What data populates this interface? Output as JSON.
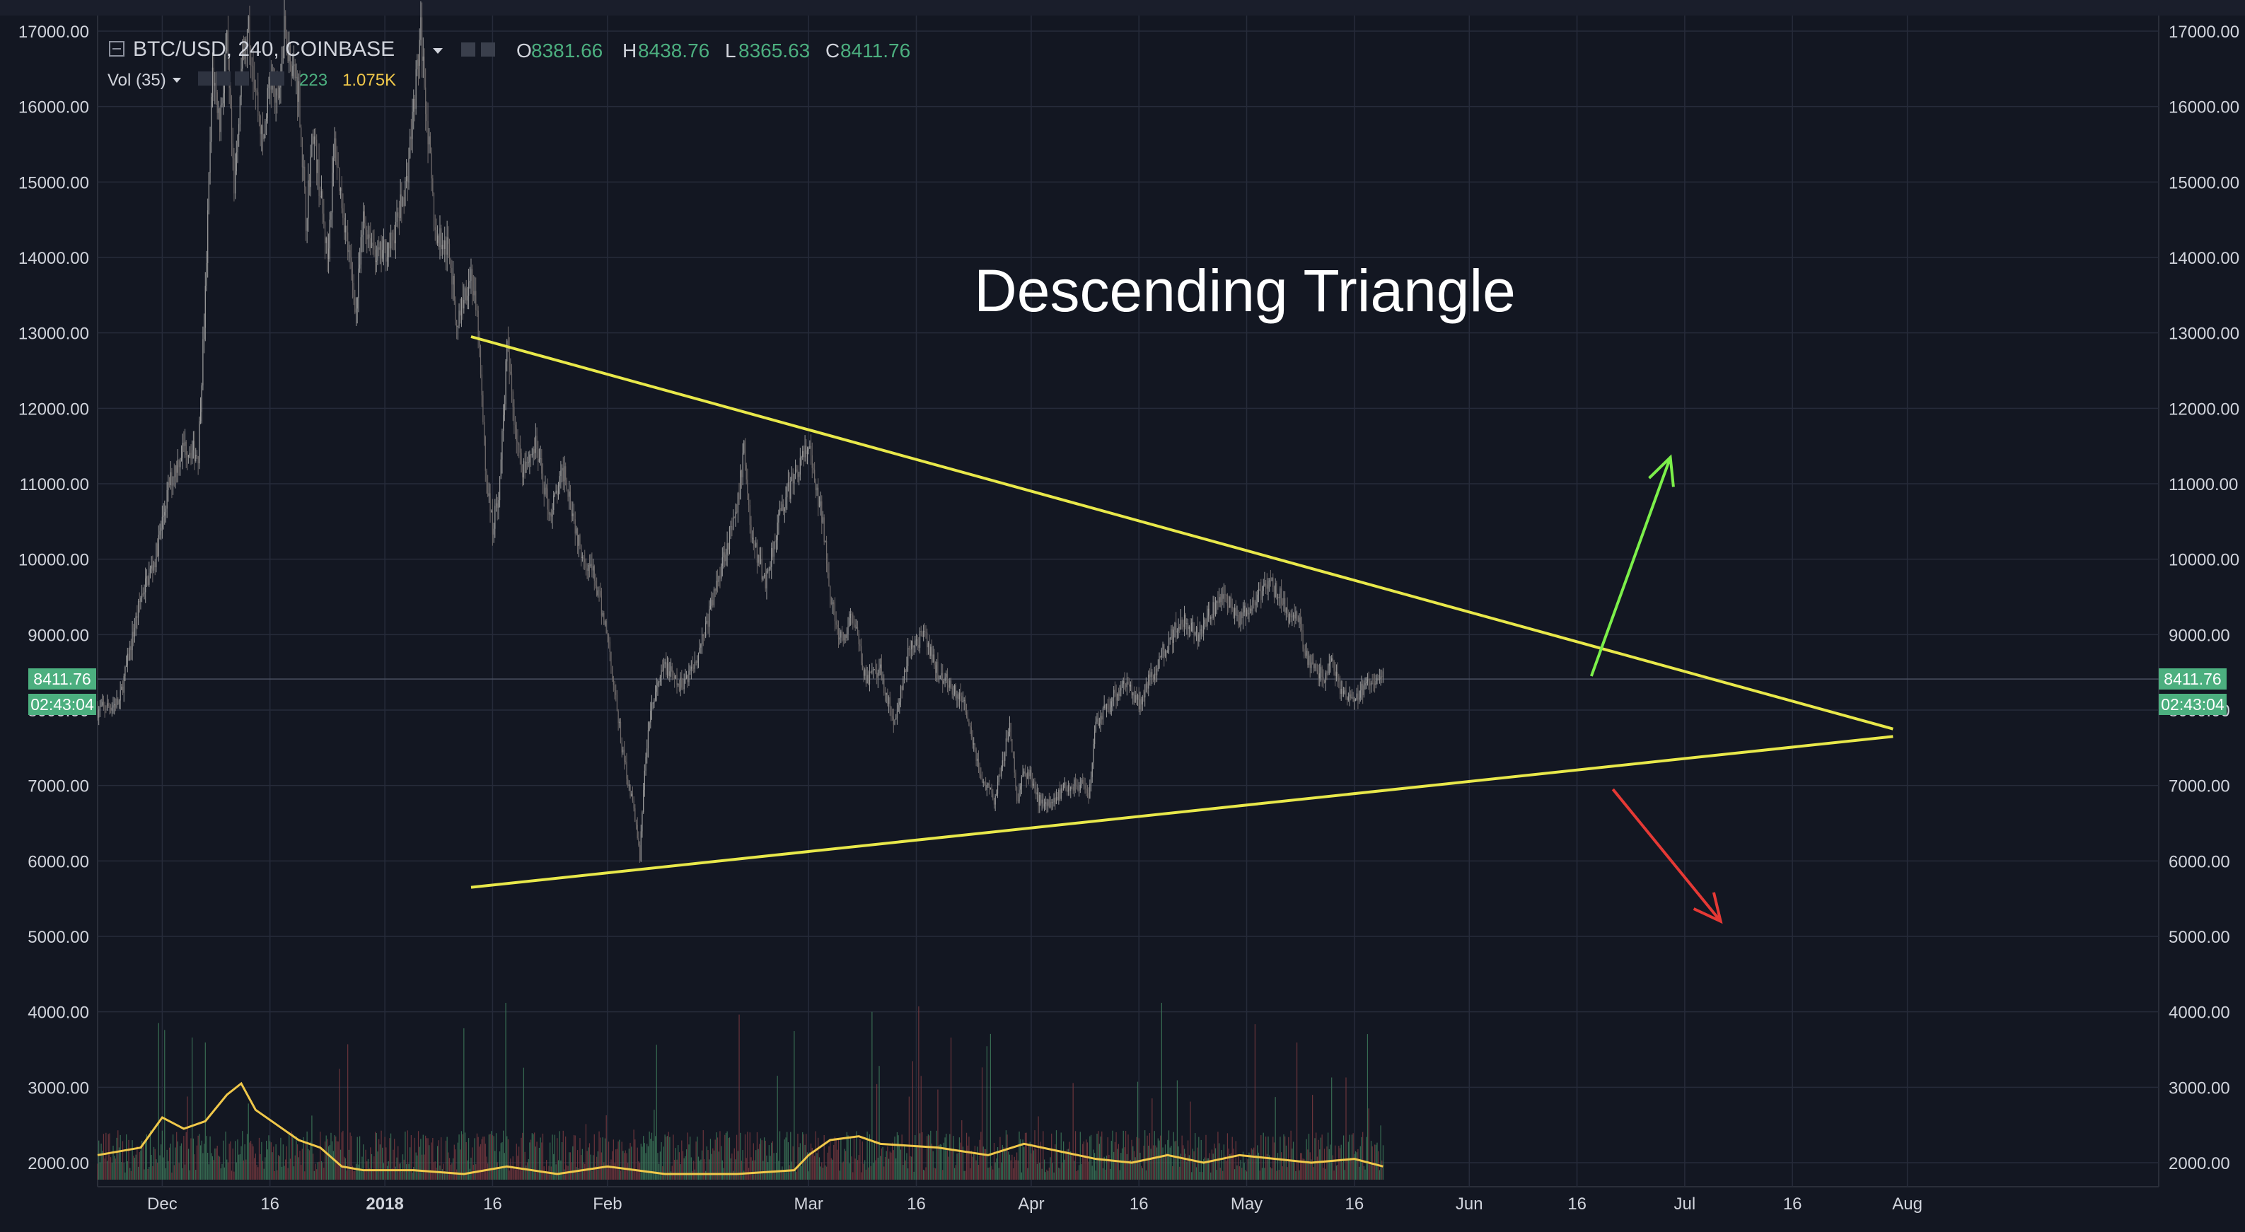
{
  "header": {
    "symbol": "BTC/USD, 240, COINBASE",
    "ohlc": [
      {
        "k": "O",
        "v": "8381.66"
      },
      {
        "k": "H",
        "v": "8438.76"
      },
      {
        "k": "L",
        "v": "8365.63"
      },
      {
        "k": "C",
        "v": "8411.76"
      }
    ],
    "vol_label": "Vol (35)",
    "vol_value": "223",
    "vol_ma_value": "1.075K"
  },
  "annotation": {
    "title": "Descending Triangle"
  },
  "price_tag": {
    "price": "8411.76",
    "countdown": "02:43:04"
  },
  "colors": {
    "background": "#131722",
    "grid": "#262b3a",
    "axis_text": "#d1d4dc",
    "candle": "#8a8a8a",
    "trendline": "#e8e84a",
    "arrow_up": "#7cf04a",
    "arrow_down": "#e53935",
    "price_tag": "#4caf7f",
    "vol_up": "#3e7a5a",
    "vol_down": "#7a3a40",
    "vol_ma": "#f0c84a"
  },
  "chart_data": {
    "type": "candlestick",
    "price_ticks": [
      2000,
      3000,
      4000,
      5000,
      6000,
      7000,
      8000,
      9000,
      10000,
      11000,
      12000,
      13000,
      14000,
      15000,
      16000,
      17000
    ],
    "price_tick_labels": [
      "2000.00",
      "3000.00",
      "4000.00",
      "5000.00",
      "6000.00",
      "7000.00",
      "8000.00",
      "9000.00",
      "10000.00",
      "11000.00",
      "12000.00",
      "13000.00",
      "14000.00",
      "15000.00",
      "16000.00",
      "17000.00"
    ],
    "ylim": [
      1700,
      17000
    ],
    "x_tick_labels": [
      "Dec",
      "16",
      "2018",
      "16",
      "Feb",
      "Mar",
      "16",
      "Apr",
      "16",
      "May",
      "16",
      "Jun",
      "16",
      "Jul",
      "16",
      "Aug"
    ],
    "x_tick_days": [
      0,
      15,
      31,
      46,
      62,
      90,
      105,
      121,
      136,
      151,
      166,
      182,
      197,
      212,
      227,
      243
    ],
    "xlim_days": [
      -9,
      278
    ],
    "price_path": [
      [
        -9,
        8000
      ],
      [
        -6,
        8100
      ],
      [
        -3,
        9500
      ],
      [
        -1,
        10000
      ],
      [
        1,
        11000
      ],
      [
        3,
        11500
      ],
      [
        5,
        11400
      ],
      [
        6,
        13500
      ],
      [
        7,
        16500
      ],
      [
        8,
        15800
      ],
      [
        9,
        16800
      ],
      [
        10,
        14800
      ],
      [
        11,
        16500
      ],
      [
        12,
        17000
      ],
      [
        14,
        15500
      ],
      [
        15,
        16400
      ],
      [
        16,
        16000
      ],
      [
        17,
        17000
      ],
      [
        19,
        16200
      ],
      [
        20,
        14500
      ],
      [
        21,
        15700
      ],
      [
        23,
        14000
      ],
      [
        24,
        15500
      ],
      [
        26,
        14000
      ],
      [
        27,
        13300
      ],
      [
        28,
        14500
      ],
      [
        30,
        14000
      ],
      [
        32,
        14200
      ],
      [
        34,
        15000
      ],
      [
        35,
        16000
      ],
      [
        36,
        17000
      ],
      [
        38,
        14300
      ],
      [
        40,
        14100
      ],
      [
        41,
        13100
      ],
      [
        42,
        13500
      ],
      [
        43,
        13800
      ],
      [
        44,
        13000
      ],
      [
        45,
        11200
      ],
      [
        46,
        10400
      ],
      [
        47,
        11000
      ],
      [
        48,
        12800
      ],
      [
        49,
        11900
      ],
      [
        50,
        11200
      ],
      [
        52,
        11500
      ],
      [
        54,
        10600
      ],
      [
        56,
        11200
      ],
      [
        58,
        10200
      ],
      [
        60,
        9800
      ],
      [
        62,
        9000
      ],
      [
        64,
        7500
      ],
      [
        66,
        6500
      ],
      [
        66.5,
        6000
      ],
      [
        67,
        7000
      ],
      [
        68,
        8000
      ],
      [
        70,
        8600
      ],
      [
        72,
        8300
      ],
      [
        74,
        8600
      ],
      [
        76,
        9200
      ],
      [
        78,
        10000
      ],
      [
        80,
        10600
      ],
      [
        81,
        11500
      ],
      [
        82,
        10300
      ],
      [
        84,
        9700
      ],
      [
        86,
        10600
      ],
      [
        88,
        11100
      ],
      [
        89,
        11300
      ],
      [
        90,
        11500
      ],
      [
        91,
        10900
      ],
      [
        92,
        10500
      ],
      [
        93,
        9600
      ],
      [
        94,
        9000
      ],
      [
        95,
        8900
      ],
      [
        96,
        9300
      ],
      [
        98,
        8400
      ],
      [
        100,
        8500
      ],
      [
        102,
        7800
      ],
      [
        104,
        8800
      ],
      [
        106,
        9000
      ],
      [
        108,
        8500
      ],
      [
        110,
        8300
      ],
      [
        112,
        8000
      ],
      [
        114,
        7100
      ],
      [
        116,
        6800
      ],
      [
        118,
        7800
      ],
      [
        119,
        6800
      ],
      [
        120,
        7200
      ],
      [
        121,
        7100
      ],
      [
        122,
        6800
      ],
      [
        124,
        6800
      ],
      [
        126,
        7000
      ],
      [
        128,
        7000
      ],
      [
        129,
        6800
      ],
      [
        130,
        7800
      ],
      [
        132,
        8100
      ],
      [
        134,
        8400
      ],
      [
        136,
        8100
      ],
      [
        138,
        8500
      ],
      [
        140,
        8900
      ],
      [
        142,
        9200
      ],
      [
        144,
        9000
      ],
      [
        146,
        9300
      ],
      [
        148,
        9500
      ],
      [
        150,
        9200
      ],
      [
        152,
        9400
      ],
      [
        154,
        9700
      ],
      [
        156,
        9500
      ],
      [
        157,
        9200
      ],
      [
        158,
        9300
      ],
      [
        159,
        8800
      ],
      [
        160,
        8600
      ],
      [
        162,
        8400
      ],
      [
        163,
        8700
      ],
      [
        164,
        8200
      ],
      [
        166,
        8100
      ],
      [
        168,
        8400
      ],
      [
        170,
        8420
      ]
    ],
    "last_price": 8411.76,
    "volume_ma": [
      [
        -9,
        2100
      ],
      [
        -3,
        2200
      ],
      [
        0,
        2600
      ],
      [
        3,
        2450
      ],
      [
        6,
        2550
      ],
      [
        9,
        2900
      ],
      [
        11,
        3050
      ],
      [
        13,
        2700
      ],
      [
        16,
        2500
      ],
      [
        19,
        2300
      ],
      [
        22,
        2200
      ],
      [
        25,
        1950
      ],
      [
        28,
        1900
      ],
      [
        35,
        1900
      ],
      [
        42,
        1850
      ],
      [
        48,
        1950
      ],
      [
        55,
        1850
      ],
      [
        62,
        1950
      ],
      [
        70,
        1850
      ],
      [
        80,
        1850
      ],
      [
        88,
        1900
      ],
      [
        90,
        2100
      ],
      [
        93,
        2300
      ],
      [
        97,
        2350
      ],
      [
        100,
        2250
      ],
      [
        108,
        2200
      ],
      [
        115,
        2100
      ],
      [
        120,
        2250
      ],
      [
        125,
        2150
      ],
      [
        130,
        2050
      ],
      [
        135,
        2000
      ],
      [
        140,
        2100
      ],
      [
        145,
        2000
      ],
      [
        150,
        2100
      ],
      [
        155,
        2050
      ],
      [
        160,
        2000
      ],
      [
        166,
        2050
      ],
      [
        170,
        1950
      ]
    ],
    "trendlines": [
      {
        "name": "upper",
        "from": [
          43,
          12950
        ],
        "to": [
          241,
          7750
        ]
      },
      {
        "name": "lower",
        "from": [
          43,
          5650
        ],
        "to": [
          241,
          7650
        ]
      }
    ],
    "arrows": [
      {
        "name": "up",
        "from": [
          199,
          8450
        ],
        "to": [
          210,
          11350
        ]
      },
      {
        "name": "down",
        "from": [
          202,
          6950
        ],
        "to": [
          217,
          5200
        ]
      }
    ]
  }
}
